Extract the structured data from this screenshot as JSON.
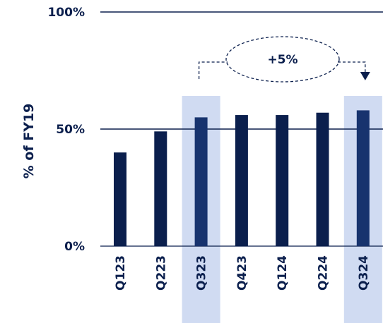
{
  "chart_data": {
    "type": "bar",
    "title": "",
    "xlabel": "",
    "ylabel": "% of FY19",
    "categories": [
      "Q123",
      "Q223",
      "Q323",
      "Q423",
      "Q124",
      "Q224",
      "Q324"
    ],
    "values": [
      40,
      49,
      55,
      56,
      56,
      57,
      58
    ],
    "ylim": [
      0,
      100
    ],
    "yticks": [
      0,
      50,
      100
    ],
    "ytick_labels": [
      "0%",
      "50%",
      "100%"
    ],
    "highlighted_categories": [
      "Q323",
      "Q324"
    ],
    "annotation": {
      "text": "+5%",
      "from": "Q323",
      "to": "Q324"
    },
    "grid": true,
    "legend": "none",
    "colors": {
      "bar": "#0b1f4d",
      "bar_highlight": "#17336e",
      "highlight_band": "#d0dbf2",
      "axis": "#0b1f4d"
    }
  }
}
